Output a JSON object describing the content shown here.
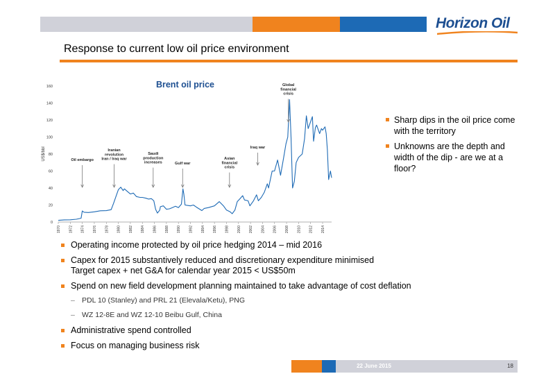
{
  "brand": {
    "logo_text": "Horizon Oil",
    "colors": {
      "orange": "#f0831e",
      "blue": "#1d6ab5",
      "navy": "#1d4f91",
      "gray": "#d0d1d9"
    }
  },
  "slide": {
    "title": "Response to current low oil price environment"
  },
  "right_bullets": [
    "Sharp dips in the oil price come with the territory",
    "Unknowns are the depth and width of the dip - are we at a floor?"
  ],
  "bottom_bullets": [
    {
      "text": "Operating income protected by oil price hedging 2014 – mid 2016"
    },
    {
      "text": "Capex for 2015 substantively reduced and discretionary expenditure minimised",
      "line2": "Target capex + net G&A for calendar year 2015 < US$50m"
    },
    {
      "text": "Spend on new field development planning maintained to take advantage of cost deflation",
      "subs": [
        "PDL 10 (Stanley) and PRL 21 (Elevala/Ketu), PNG",
        "WZ 12-8E and WZ 12-10 Beibu Gulf, China"
      ]
    },
    {
      "text": "Administrative spend controlled"
    },
    {
      "text": "Focus on managing business risk"
    }
  ],
  "footer": {
    "date": "22 June 2015",
    "page": "18"
  },
  "chart_data": {
    "type": "line",
    "title": "Brent oil price",
    "ylabel": "US$/bbl",
    "xlabel": "",
    "ylim": [
      0,
      160
    ],
    "xlim": [
      1970,
      2015.5
    ],
    "yticks": [
      0,
      20,
      40,
      60,
      80,
      100,
      120,
      140,
      160
    ],
    "xticks": [
      1970,
      1972,
      1974,
      1976,
      1978,
      1980,
      1982,
      1984,
      1986,
      1988,
      1990,
      1992,
      1994,
      1996,
      1998,
      2000,
      2002,
      2004,
      2006,
      2008,
      2010,
      2012,
      2014
    ],
    "series": [
      {
        "color": "#1d6ab5",
        "points": [
          [
            1970,
            2.0
          ],
          [
            1971,
            2.5
          ],
          [
            1972,
            2.6
          ],
          [
            1973,
            3.3
          ],
          [
            1973.8,
            4.5
          ],
          [
            1974.0,
            13
          ],
          [
            1974.3,
            11.5
          ],
          [
            1975,
            11.2
          ],
          [
            1976,
            12.0
          ],
          [
            1977,
            13.2
          ],
          [
            1978,
            13.4
          ],
          [
            1978.8,
            14.5
          ],
          [
            1979.2,
            22
          ],
          [
            1979.6,
            30
          ],
          [
            1980,
            38
          ],
          [
            1980.4,
            41
          ],
          [
            1980.8,
            37
          ],
          [
            1981,
            39
          ],
          [
            1981.5,
            36
          ],
          [
            1982,
            33
          ],
          [
            1982.5,
            34
          ],
          [
            1983,
            30
          ],
          [
            1983.6,
            29
          ],
          [
            1984,
            29
          ],
          [
            1984.6,
            28
          ],
          [
            1985,
            27
          ],
          [
            1985.5,
            27.5
          ],
          [
            1985.9,
            25
          ],
          [
            1986.2,
            15
          ],
          [
            1986.5,
            10.5
          ],
          [
            1986.9,
            14
          ],
          [
            1987,
            18
          ],
          [
            1987.5,
            19
          ],
          [
            1988,
            15
          ],
          [
            1988.5,
            15.5
          ],
          [
            1989,
            17
          ],
          [
            1989.5,
            18.5
          ],
          [
            1990,
            17
          ],
          [
            1990.5,
            21
          ],
          [
            1990.75,
            39
          ],
          [
            1990.9,
            33
          ],
          [
            1991.1,
            20
          ],
          [
            1991.5,
            19.5
          ],
          [
            1992,
            19
          ],
          [
            1992.5,
            20
          ],
          [
            1993,
            17.5
          ],
          [
            1993.9,
            13.5
          ],
          [
            1994.3,
            16
          ],
          [
            1995,
            17
          ],
          [
            1996,
            19
          ],
          [
            1996.8,
            24
          ],
          [
            1997.5,
            19
          ],
          [
            1998,
            14
          ],
          [
            1998.6,
            12
          ],
          [
            1998.95,
            9.8
          ],
          [
            1999.4,
            14
          ],
          [
            1999.8,
            24
          ],
          [
            2000.2,
            27
          ],
          [
            2000.7,
            31
          ],
          [
            2001,
            26
          ],
          [
            2001.6,
            25
          ],
          [
            2001.9,
            19
          ],
          [
            2002.5,
            25
          ],
          [
            2003.0,
            32
          ],
          [
            2003.3,
            25
          ],
          [
            2003.8,
            29
          ],
          [
            2004.3,
            35
          ],
          [
            2004.8,
            45
          ],
          [
            2005,
            40
          ],
          [
            2005.6,
            60
          ],
          [
            2006,
            60
          ],
          [
            2006.5,
            73
          ],
          [
            2007,
            55
          ],
          [
            2007.5,
            75
          ],
          [
            2007.9,
            92
          ],
          [
            2008.2,
            100
          ],
          [
            2008.5,
            144
          ],
          [
            2008.75,
            100
          ],
          [
            2009.0,
            40
          ],
          [
            2009.3,
            48
          ],
          [
            2009.6,
            70
          ],
          [
            2010,
            76
          ],
          [
            2010.6,
            80
          ],
          [
            2011,
            98
          ],
          [
            2011.3,
            125
          ],
          [
            2011.6,
            110
          ],
          [
            2012,
            118
          ],
          [
            2012.3,
            124
          ],
          [
            2012.5,
            95
          ],
          [
            2012.8,
            111
          ],
          [
            2013,
            114
          ],
          [
            2013.5,
            104
          ],
          [
            2013.8,
            110
          ],
          [
            2014,
            108
          ],
          [
            2014.4,
            112
          ],
          [
            2014.6,
            104
          ],
          [
            2014.8,
            85
          ],
          [
            2015.0,
            50
          ],
          [
            2015.3,
            60
          ],
          [
            2015.5,
            52
          ]
        ]
      }
    ],
    "annotations": [
      {
        "text": [
          "Oil embargo"
        ],
        "x": 1974
      },
      {
        "text": [
          "Iranian",
          "revolution",
          "Iran / Iraq war"
        ],
        "x": 1979.3
      },
      {
        "text": [
          "Saudi",
          "production",
          "increases"
        ],
        "x": 1985.8
      },
      {
        "text": [
          "Gulf war"
        ],
        "x": 1990.7
      },
      {
        "text": [
          "Asian",
          "financial",
          "crisis"
        ],
        "x": 1998.5
      },
      {
        "text": [
          "Iraq war"
        ],
        "x": 2003.2
      },
      {
        "text": [
          "Global",
          "financial",
          "crisis"
        ],
        "x": 2008.3
      }
    ]
  }
}
